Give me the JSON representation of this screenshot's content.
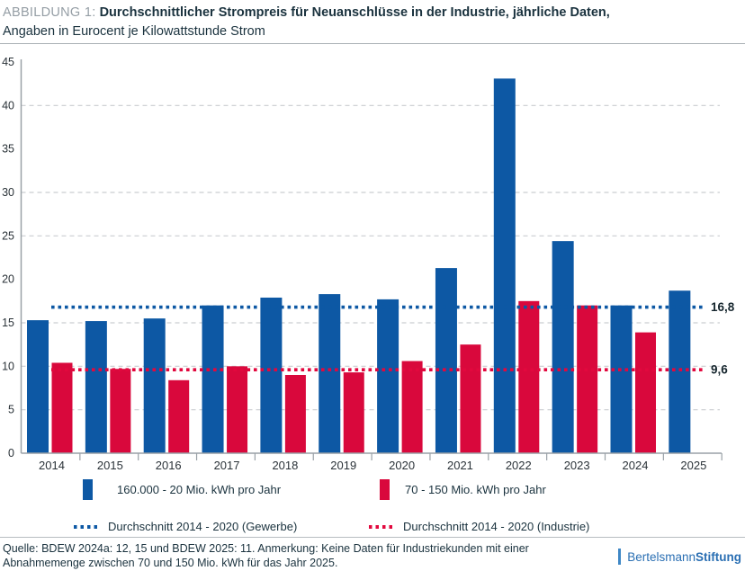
{
  "header": {
    "label": "ABBILDUNG 1:",
    "title_line1": "Durchschnittlicher Strompreis für Neuanschlüsse in der Industrie, jährliche Daten,",
    "title_line2": "Angaben in Eurocent je Kilowattstunde Strom"
  },
  "chart_data": {
    "type": "bar",
    "title": "Durchschnittlicher Strompreis für Neuanschlüsse in der Industrie, jährliche Daten, Angaben in Eurocent je Kilowattstunde Strom",
    "categories": [
      "2014",
      "2015",
      "2016",
      "2017",
      "2018",
      "2019",
      "2020",
      "2021",
      "2022",
      "2023",
      "2024",
      "2025"
    ],
    "series": [
      {
        "name": "160.000 - 20 Mio. kWh pro Jahr",
        "color": "#0d58a4",
        "values": [
          15.3,
          15.2,
          15.5,
          17.0,
          17.9,
          18.3,
          17.7,
          21.3,
          43.1,
          24.4,
          17.0,
          18.7
        ]
      },
      {
        "name": "70 - 150 Mio. kWh pro Jahr",
        "color": "#d9083c",
        "values": [
          10.4,
          9.7,
          8.4,
          10.0,
          9.0,
          9.3,
          10.6,
          12.5,
          17.5,
          17.0,
          13.9,
          null
        ]
      }
    ],
    "reference_lines": [
      {
        "label": "Durchschnitt 2014 - 2020 (Gewerbe)",
        "value": 16.8,
        "value_label": "16,8",
        "color": "#0d58a4"
      },
      {
        "label": "Durchschnitt 2014 - 2020 (Industrie)",
        "value": 9.6,
        "value_label": "9,6",
        "color": "#e2083e"
      }
    ],
    "ylim": [
      0,
      45
    ],
    "yticks": [
      0,
      5,
      10,
      15,
      20,
      25,
      30,
      35,
      40,
      45
    ],
    "gridlines": [
      5,
      10,
      15,
      25,
      30,
      40
    ],
    "grid": "dashed-horizontal",
    "legend_position": "bottom",
    "xlabel": "",
    "ylabel": ""
  },
  "colors": {
    "grid": "#c9cdd0",
    "axis": "#9aa1a7",
    "tick_text": "#2a3238",
    "ref_label_text": "#16262e"
  },
  "footer": {
    "source_line1": "Quelle: BDEW 2024a: 12, 15 und BDEW 2025: 11. Anmerkung: Keine Daten für Industriekunden mit einer",
    "source_line2": "Abnahmemenge zwischen 70 und 150 Mio. kWh für das Jahr 2025.",
    "logo_regular": "Bertelsmann",
    "logo_bold": "Stiftung"
  }
}
